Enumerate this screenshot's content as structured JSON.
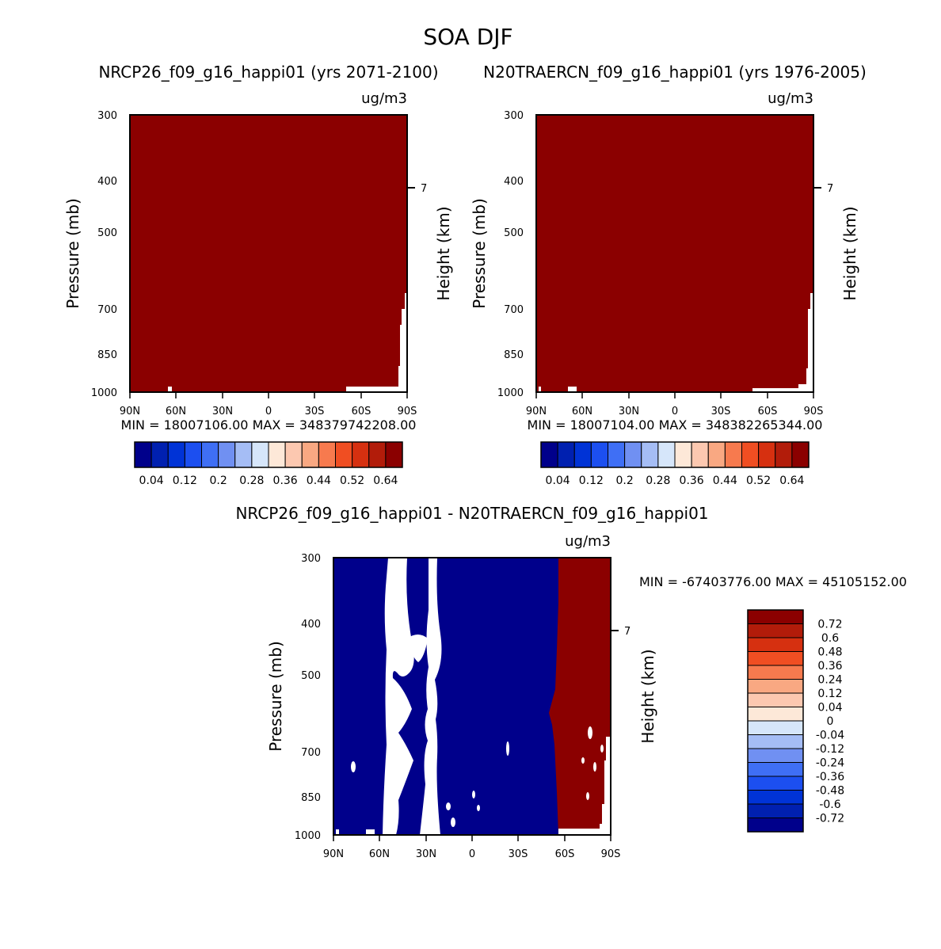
{
  "title": "SOA DJF",
  "colors": {
    "positive_fill": "#8b0000",
    "negative_fill": "#00008b",
    "missing_fill": "#ffffff"
  },
  "chart_data": [
    {
      "type": "heatmap",
      "title": "NRCP26_f09_g16_happi01 (yrs 2071-2100)",
      "units": "ug/m3",
      "ylabel": "Pressure (mb)",
      "ylabel_right": "Height (km)",
      "yticks": [
        "300",
        "400",
        "500",
        "700",
        "850",
        "1000"
      ],
      "yticks_right": [
        "7"
      ],
      "xticks": [
        "90N",
        "60N",
        "30N",
        "0",
        "30S",
        "60S",
        "90S"
      ],
      "min_max_text": "MIN = 18007106.00   MAX = 348379742208.00",
      "colorbar": {
        "orientation": "horizontal",
        "colors": [
          "#00008b",
          "#0020b0",
          "#0033d6",
          "#1c4ff0",
          "#3f6ff5",
          "#7090f2",
          "#a5bdf5",
          "#d6e6fa",
          "#fde8d8",
          "#fcc8b0",
          "#f9a882",
          "#f77a4e",
          "#f04e22",
          "#d63010",
          "#b21c0a",
          "#8b0000"
        ],
        "labels": [
          "0.04",
          "0.12",
          "0.2",
          "0.28",
          "0.36",
          "0.44",
          "0.52",
          "0.64"
        ]
      }
    },
    {
      "type": "heatmap",
      "title": "N20TRAERCN_f09_g16_happi01 (yrs 1976-2005)",
      "units": "ug/m3",
      "ylabel": "Pressure (mb)",
      "ylabel_right": "Height (km)",
      "yticks": [
        "300",
        "400",
        "500",
        "700",
        "850",
        "1000"
      ],
      "yticks_right": [
        "7"
      ],
      "xticks": [
        "90N",
        "60N",
        "30N",
        "0",
        "30S",
        "60S",
        "90S"
      ],
      "min_max_text": "MIN = 18007104.00   MAX = 348382265344.00",
      "colorbar": {
        "orientation": "horizontal",
        "colors": [
          "#00008b",
          "#0020b0",
          "#0033d6",
          "#1c4ff0",
          "#3f6ff5",
          "#7090f2",
          "#a5bdf5",
          "#d6e6fa",
          "#fde8d8",
          "#fcc8b0",
          "#f9a882",
          "#f77a4e",
          "#f04e22",
          "#d63010",
          "#b21c0a",
          "#8b0000"
        ],
        "labels": [
          "0.04",
          "0.12",
          "0.2",
          "0.28",
          "0.36",
          "0.44",
          "0.52",
          "0.64"
        ]
      }
    },
    {
      "type": "heatmap",
      "title": "NRCP26_f09_g16_happi01 - N20TRAERCN_f09_g16_happi01",
      "units": "ug/m3",
      "ylabel": "Pressure (mb)",
      "ylabel_right": "Height (km)",
      "yticks": [
        "300",
        "400",
        "500",
        "700",
        "850",
        "1000"
      ],
      "yticks_right": [
        "7"
      ],
      "xticks": [
        "90N",
        "60N",
        "30N",
        "0",
        "30S",
        "60S",
        "90S"
      ],
      "min_max_text": "MIN = -67403776.00   MAX = 45105152.00",
      "colorbar": {
        "orientation": "vertical",
        "colors": [
          "#8b0000",
          "#b21c0a",
          "#d63010",
          "#f04e22",
          "#f77a4e",
          "#f9a882",
          "#fcc8b0",
          "#fde8d8",
          "#d6e6fa",
          "#a5bdf5",
          "#7090f2",
          "#3f6ff5",
          "#1c4ff0",
          "#0033d6",
          "#0020b0",
          "#00008b"
        ],
        "labels": [
          "0.72",
          "0.6",
          "0.48",
          "0.36",
          "0.24",
          "0.12",
          "0.04",
          "0",
          "-0.04",
          "-0.12",
          "-0.24",
          "-0.36",
          "-0.48",
          "-0.6",
          "-0.72"
        ]
      }
    }
  ]
}
